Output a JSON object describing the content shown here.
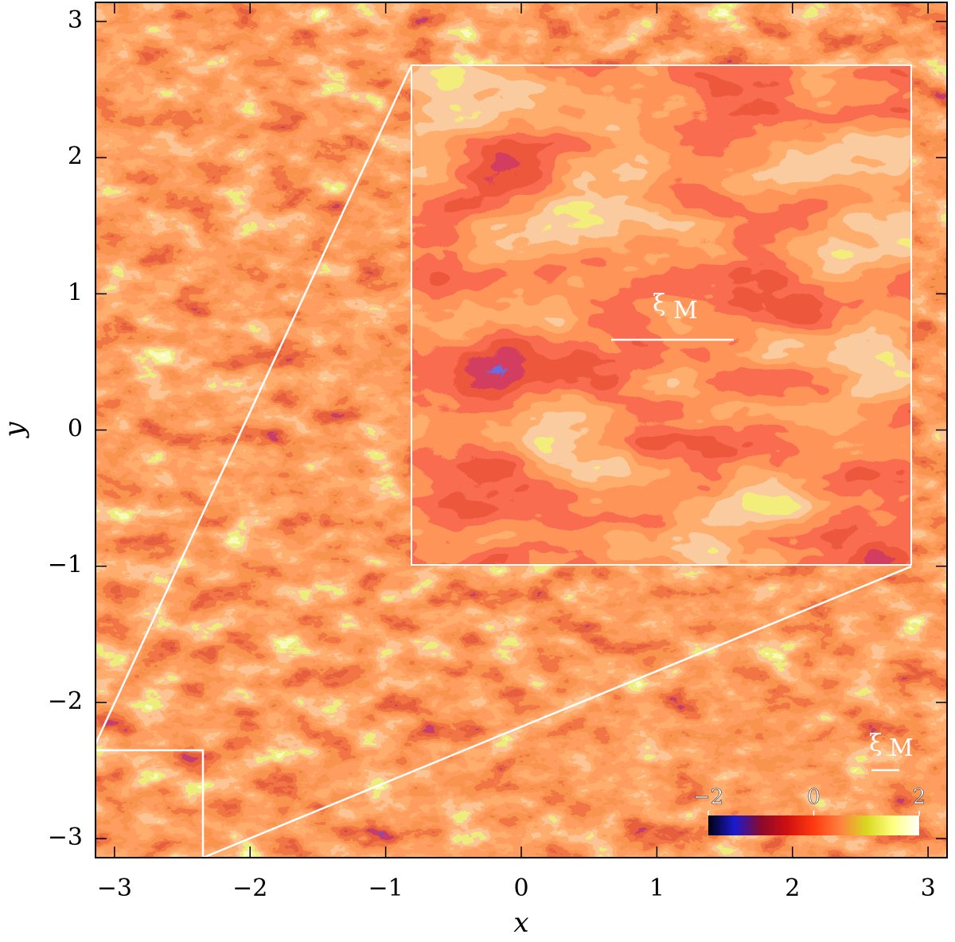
{
  "chart_data": {
    "type": "field",
    "x_label": "x",
    "y_label": "y",
    "xlim": [
      -3.14,
      3.14
    ],
    "ylim": [
      -3.14,
      3.14
    ],
    "xticks": [
      {
        "value": -3,
        "label": "−3"
      },
      {
        "value": -2,
        "label": "−2"
      },
      {
        "value": -1,
        "label": "−1"
      },
      0,
      1,
      2,
      3
    ],
    "yticks": [
      {
        "value": -3,
        "label": "−3"
      },
      {
        "value": -2,
        "label": "−2"
      },
      {
        "value": -1,
        "label": "−1"
      },
      0,
      1,
      2,
      3
    ],
    "scale_label": {
      "symbol": "ξ",
      "subscript": "M"
    },
    "colorbar": {
      "lim": [
        -2,
        2
      ],
      "ticks": [
        {
          "value": -2,
          "label": "−2"
        },
        0,
        2
      ],
      "colormap": [
        "#000010",
        "#1a1ad0",
        "#8a0a2a",
        "#d01010",
        "#ff3a10",
        "#ff8040",
        "#d8d820",
        "#ffff80",
        "#ffffff"
      ]
    }
  }
}
